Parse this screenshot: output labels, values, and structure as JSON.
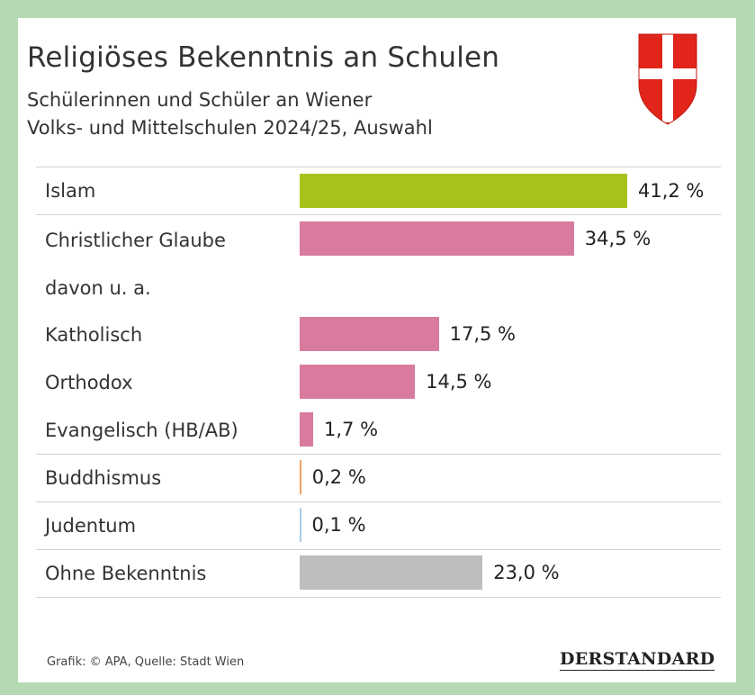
{
  "title": "Religiöses Bekenntnis an Schulen",
  "subtitle_line1": "Schülerinnen und Schüler an Wiener",
  "subtitle_line2": "Volks- und Mittelschulen 2024/25, Auswahl",
  "davon_label": "davon u. a.",
  "source": "Grafik: © APA, Quelle: Stadt Wien",
  "brand": "DERSTANDARD",
  "colors": {
    "islam": "#a6c21b",
    "christian": "#d97a9f",
    "buddhism": "#f0a060",
    "judaism": "#a8cde8",
    "none": "#bdbdbd"
  },
  "chart_data": {
    "type": "bar",
    "orientation": "horizontal",
    "unit": "%",
    "categories": [
      "Islam",
      "Christlicher Glaube",
      "Katholisch",
      "Orthodox",
      "Evangelisch (HB/AB)",
      "Buddhismus",
      "Judentum",
      "Ohne Bekenntnis"
    ],
    "values": [
      41.2,
      34.5,
      17.5,
      14.5,
      1.7,
      0.2,
      0.1,
      23.0
    ],
    "value_labels": [
      "41,2 %",
      "34,5 %",
      "17,5 %",
      "14,5 %",
      "1,7 %",
      "0,2 %",
      "0,1 %",
      "23,0 %"
    ],
    "xlim": [
      0,
      41.2
    ],
    "legend": "none",
    "grid": false
  }
}
